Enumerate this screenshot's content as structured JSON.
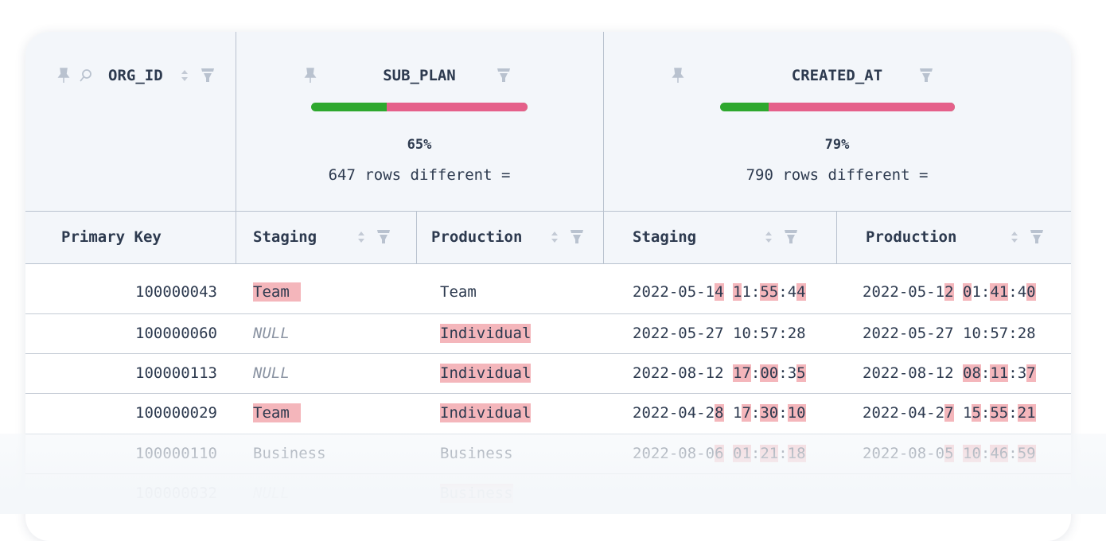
{
  "columns": {
    "org_id": {
      "name": "ORG_ID"
    },
    "sub_plan": {
      "name": "SUB_PLAN",
      "diff_percent": {
        "value": 65,
        "label": "65%"
      },
      "rows_different": "647 rows different ="
    },
    "created_at": {
      "name": "CREATED_AT",
      "diff_percent": {
        "value": 79,
        "label": "79%"
      },
      "rows_different": "790 rows different ="
    }
  },
  "subheaders": [
    "Primary Key",
    "Staging",
    "Production",
    "Staging",
    "Production"
  ],
  "bar_colors": {
    "same": "#2ea82e",
    "different": "#e5608a"
  },
  "rows": [
    {
      "key": "100000043",
      "sub_plan": [
        "Team",
        "Team"
      ],
      "sub_plan_highlight": [
        true,
        false
      ],
      "created_at": [
        "2022-05-14 11:55:44",
        "2022-05-12 01:41:40"
      ]
    },
    {
      "key": "100000060",
      "sub_plan": [
        "NULL",
        "Individual"
      ],
      "sub_plan_highlight": [
        false,
        true
      ],
      "created_at": [
        "2022-05-27 10:57:28",
        "2022-05-27 10:57:28"
      ]
    },
    {
      "key": "100000113",
      "sub_plan": [
        "NULL",
        "Individual"
      ],
      "sub_plan_highlight": [
        false,
        true
      ],
      "created_at": [
        "2022-08-12 17:00:35",
        "2022-08-12 08:11:37"
      ]
    },
    {
      "key": "100000029",
      "sub_plan": [
        "Team",
        "Individual"
      ],
      "sub_plan_highlight": [
        true,
        true
      ],
      "created_at": [
        "2022-04-28 17:30:10",
        "2022-04-27 15:55:21"
      ]
    },
    {
      "key": "100000110",
      "sub_plan": [
        "Business",
        "Business"
      ],
      "sub_plan_highlight": [
        false,
        false
      ],
      "created_at": [
        "2022-08-06 01:21:18",
        "2022-08-05 10:46:59"
      ]
    },
    {
      "key": "100000032",
      "sub_plan": [
        "NULL",
        "Business"
      ],
      "sub_plan_highlight": [
        false,
        true
      ]
    }
  ]
}
